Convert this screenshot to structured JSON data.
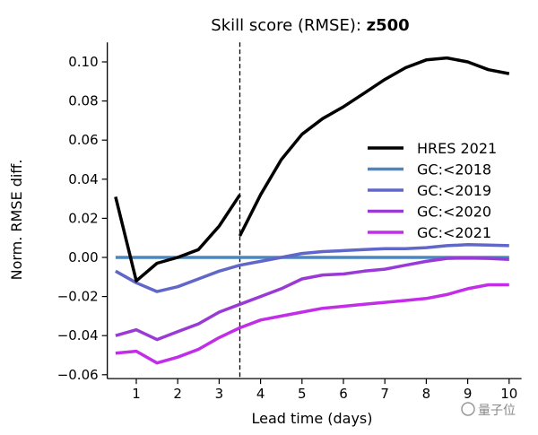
{
  "chart_data": {
    "type": "line",
    "title": {
      "prefix": "Skill score (RMSE): ",
      "variable": "z500"
    },
    "xlabel": "Lead time (days)",
    "ylabel": "Norm. RMSE diff.",
    "xlim": [
      0.3,
      10.3
    ],
    "ylim": [
      -0.062,
      0.11
    ],
    "xticks": [
      1,
      2,
      3,
      4,
      5,
      6,
      7,
      8,
      9,
      10
    ],
    "yticks": [
      -0.06,
      -0.04,
      -0.02,
      0.0,
      0.02,
      0.04,
      0.06,
      0.08,
      0.1
    ],
    "ytick_labels": [
      "−0.06",
      "−0.04",
      "−0.02",
      "0.00",
      "0.02",
      "0.04",
      "0.06",
      "0.08",
      "0.10"
    ],
    "vline": {
      "x": 3.5,
      "style": "dashed"
    },
    "grid": false,
    "legend_placement": "center-right",
    "x": [
      0.5,
      1,
      1.5,
      2,
      2.5,
      3,
      3.5,
      4,
      4.5,
      5,
      5.5,
      6,
      6.5,
      7,
      7.5,
      8,
      8.5,
      9,
      9.5,
      10
    ],
    "series": [
      {
        "name": "HRES 2021",
        "color": "#000000",
        "segments": [
          {
            "x": [
              0.5,
              1,
              1.5,
              2,
              2.5,
              3,
              3.5
            ],
            "values": [
              0.031,
              -0.012,
              -0.003,
              0.0,
              0.004,
              0.016,
              0.032
            ]
          },
          {
            "x": [
              3.5,
              4,
              4.5,
              5,
              5.5,
              6,
              6.5,
              7,
              7.5,
              8,
              8.5,
              9,
              9.5,
              10
            ],
            "values": [
              0.011,
              0.032,
              0.05,
              0.063,
              0.071,
              0.077,
              0.084,
              0.091,
              0.097,
              0.101,
              0.102,
              0.1,
              0.096,
              0.094
            ]
          }
        ]
      },
      {
        "name": "GC:<2018",
        "color": "#4a86c0",
        "values": [
          0,
          0,
          0,
          0,
          0,
          0,
          0,
          0,
          0,
          0,
          0,
          0,
          0,
          0,
          0,
          0,
          0,
          0,
          0,
          0
        ]
      },
      {
        "name": "GC:<2019",
        "color": "#6166c9",
        "values": [
          -0.007,
          -0.013,
          -0.0175,
          -0.015,
          -0.011,
          -0.007,
          -0.004,
          -0.002,
          0.0,
          0.002,
          0.003,
          0.0035,
          0.004,
          0.0045,
          0.0045,
          0.005,
          0.006,
          0.0065,
          0.0063,
          0.006
        ]
      },
      {
        "name": "GC:<2020",
        "color": "#9a3ad6",
        "values": [
          -0.04,
          -0.037,
          -0.042,
          -0.038,
          -0.034,
          -0.028,
          -0.024,
          -0.02,
          -0.016,
          -0.011,
          -0.009,
          -0.0085,
          -0.007,
          -0.006,
          -0.004,
          -0.002,
          -0.0005,
          -0.0003,
          -0.0005,
          -0.001
        ]
      },
      {
        "name": "GC:<2021",
        "color": "#c22ee8",
        "values": [
          -0.049,
          -0.048,
          -0.054,
          -0.051,
          -0.047,
          -0.041,
          -0.036,
          -0.032,
          -0.03,
          -0.028,
          -0.026,
          -0.025,
          -0.024,
          -0.023,
          -0.022,
          -0.021,
          -0.019,
          -0.016,
          -0.014,
          -0.014
        ]
      }
    ]
  },
  "watermark": "量子位"
}
